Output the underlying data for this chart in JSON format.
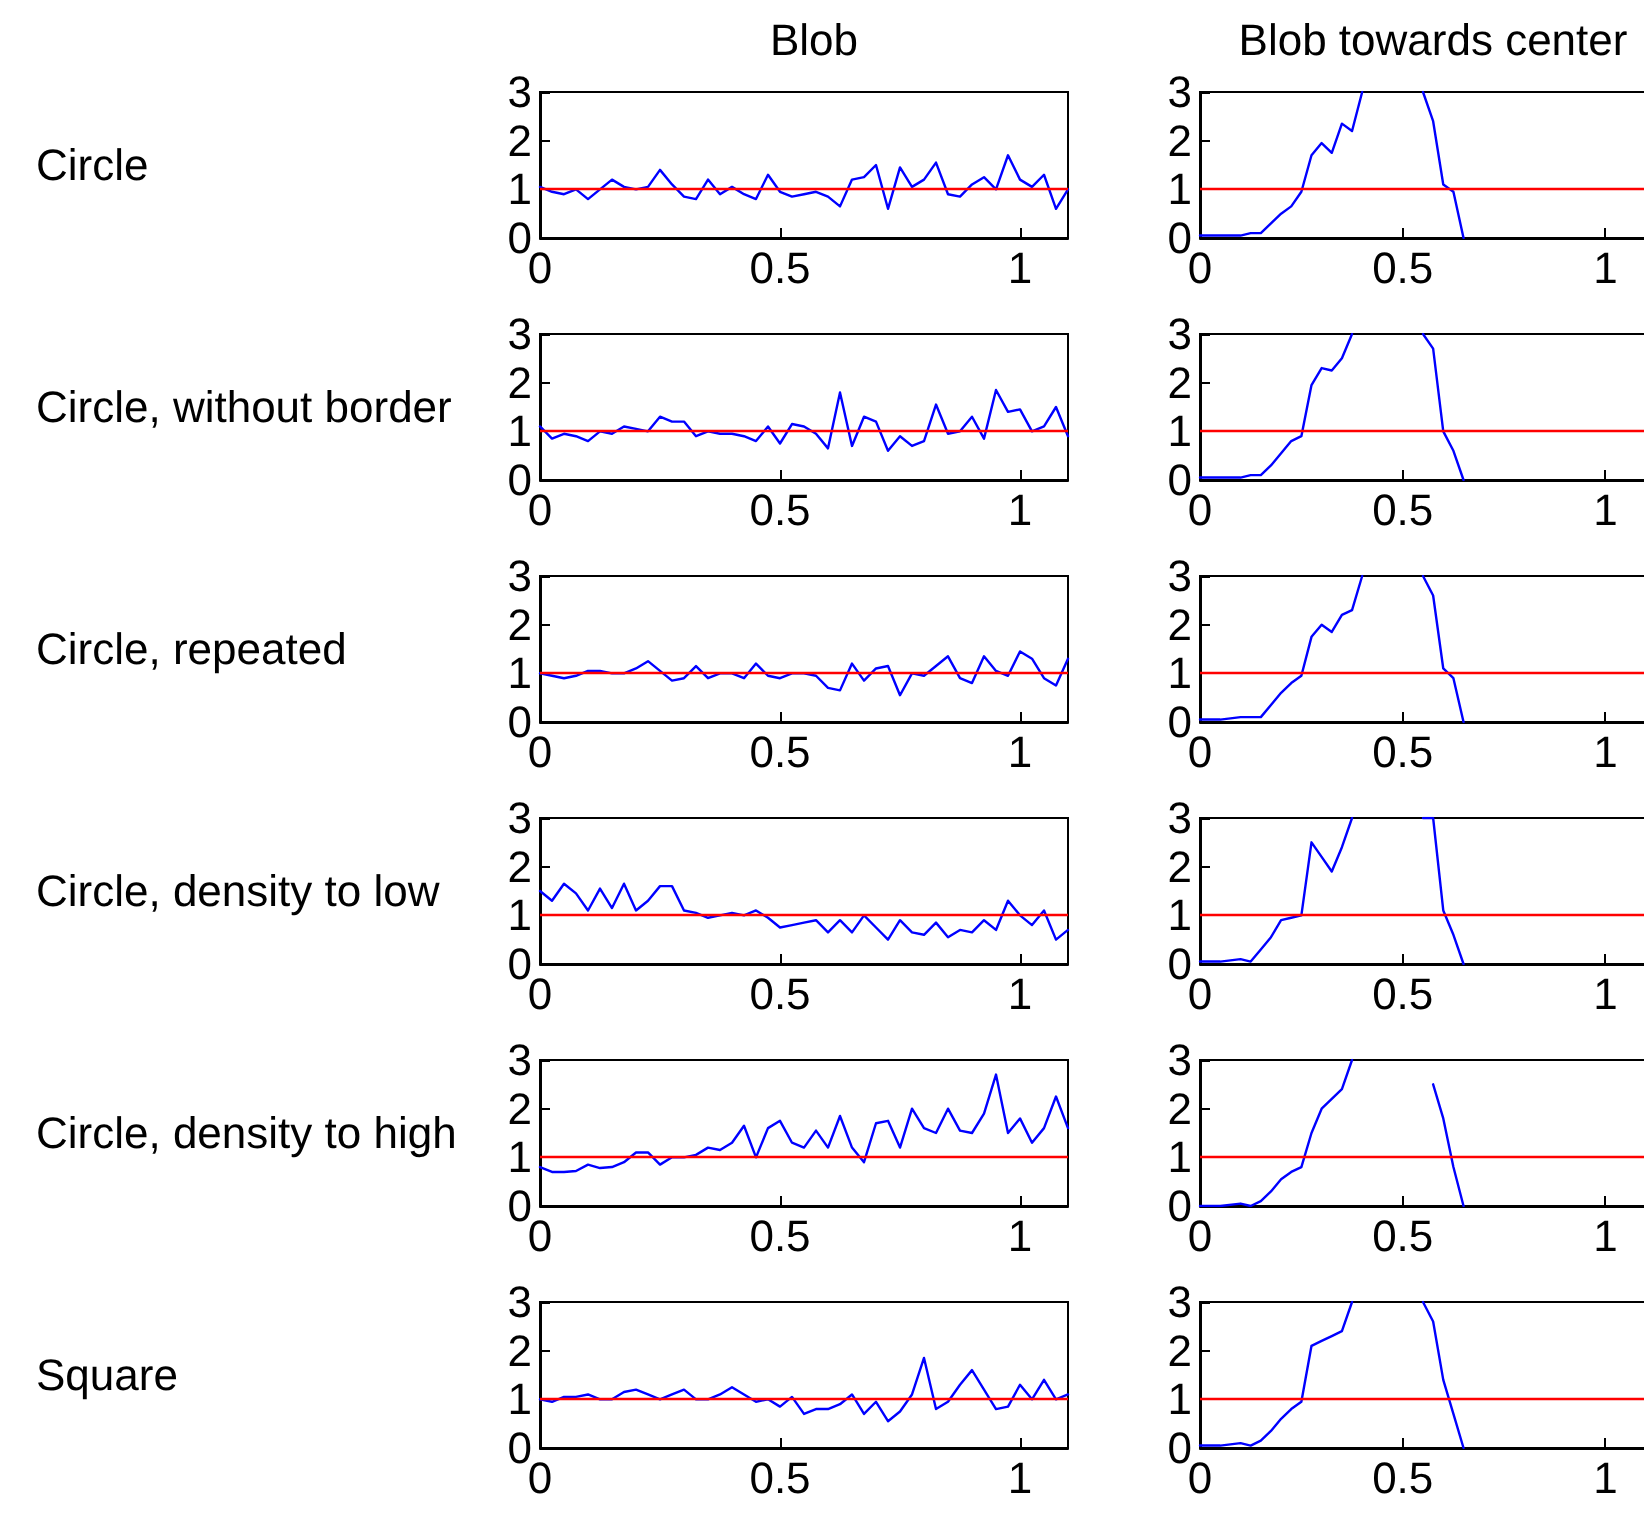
{
  "chart_data": [
    {
      "type": "line",
      "title": "Blob",
      "ylabel": "Circle",
      "x": [
        0,
        0.025,
        0.05,
        0.075,
        0.1,
        0.125,
        0.15,
        0.175,
        0.2,
        0.225,
        0.25,
        0.275,
        0.3,
        0.325,
        0.35,
        0.375,
        0.4,
        0.425,
        0.45,
        0.475,
        0.5,
        0.525,
        0.55,
        0.575,
        0.6,
        0.625,
        0.65,
        0.675,
        0.7,
        0.725,
        0.75,
        0.775,
        0.8,
        0.825,
        0.85,
        0.875,
        0.9,
        0.925,
        0.95,
        0.975,
        1,
        1.025,
        1.05,
        1.075,
        1.1
      ],
      "series": [
        {
          "color": "#0000ff",
          "values": [
            1.05,
            0.95,
            0.9,
            1.0,
            0.8,
            1.0,
            1.2,
            1.05,
            1.0,
            1.05,
            1.4,
            1.1,
            0.85,
            0.8,
            1.2,
            0.9,
            1.05,
            0.9,
            0.8,
            1.3,
            0.95,
            0.85,
            0.9,
            0.95,
            0.85,
            0.65,
            1.2,
            1.25,
            1.5,
            0.6,
            1.45,
            1.05,
            1.2,
            1.55,
            0.9,
            0.85,
            1.1,
            1.25,
            1.0,
            1.7,
            1.2,
            1.05,
            1.3,
            0.6,
            1.0
          ]
        }
      ],
      "xlim": [
        0,
        1.1
      ],
      "ylim": [
        0,
        3
      ],
      "xticks": [
        0,
        0.5,
        1
      ],
      "yticks": [
        0,
        1,
        2,
        3
      ],
      "grid": false,
      "marker": "none",
      "line_style": "solid",
      "ref_lines": [
        {
          "axis": "y",
          "value": 1,
          "color": "#ff0000"
        }
      ]
    },
    {
      "type": "line",
      "title": "Blob towards center",
      "x": [
        0,
        0.05,
        0.1,
        0.125,
        0.15,
        0.175,
        0.2,
        0.225,
        0.25,
        0.275,
        0.3,
        0.325,
        0.35,
        0.375,
        0.4,
        0.425,
        0.45,
        0.475,
        0.5,
        0.525,
        0.55,
        0.575,
        0.6,
        0.625,
        0.65
      ],
      "series": [
        {
          "color": "#0000ff",
          "values": [
            0.05,
            0.05,
            0.05,
            0.1,
            0.1,
            0.3,
            0.5,
            0.65,
            0.95,
            1.7,
            1.95,
            1.75,
            2.35,
            2.2,
            3,
            null,
            null,
            null,
            null,
            null,
            3,
            2.4,
            1.1,
            0.95,
            0
          ]
        }
      ],
      "xlim": [
        0,
        1.1
      ],
      "ylim": [
        0,
        3
      ],
      "xticks": [
        0,
        0.5,
        1
      ],
      "yticks": [
        0,
        1,
        2,
        3
      ],
      "grid": false,
      "marker": "none",
      "line_style": "solid",
      "ref_lines": [
        {
          "axis": "y",
          "value": 1,
          "color": "#ff0000"
        }
      ]
    },
    {
      "type": "line",
      "ylabel": "Circle, without border",
      "x": [
        0,
        0.025,
        0.05,
        0.075,
        0.1,
        0.125,
        0.15,
        0.175,
        0.2,
        0.225,
        0.25,
        0.275,
        0.3,
        0.325,
        0.35,
        0.375,
        0.4,
        0.425,
        0.45,
        0.475,
        0.5,
        0.525,
        0.55,
        0.575,
        0.6,
        0.625,
        0.65,
        0.675,
        0.7,
        0.725,
        0.75,
        0.775,
        0.8,
        0.825,
        0.85,
        0.875,
        0.9,
        0.925,
        0.95,
        0.975,
        1,
        1.025,
        1.05,
        1.075,
        1.1
      ],
      "series": [
        {
          "color": "#0000ff",
          "values": [
            1.1,
            0.85,
            0.95,
            0.9,
            0.8,
            1.0,
            0.95,
            1.1,
            1.05,
            1.0,
            1.3,
            1.2,
            1.2,
            0.9,
            1.0,
            0.95,
            0.95,
            0.9,
            0.8,
            1.1,
            0.75,
            1.15,
            1.1,
            0.95,
            0.65,
            1.8,
            0.7,
            1.3,
            1.2,
            0.6,
            0.9,
            0.7,
            0.8,
            1.55,
            0.95,
            1.0,
            1.3,
            0.85,
            1.85,
            1.4,
            1.45,
            1.0,
            1.1,
            1.5,
            0.9
          ]
        }
      ],
      "xlim": [
        0,
        1.1
      ],
      "ylim": [
        0,
        3
      ],
      "xticks": [
        0,
        0.5,
        1
      ],
      "yticks": [
        0,
        1,
        2,
        3
      ],
      "grid": false,
      "marker": "none",
      "line_style": "solid",
      "ref_lines": [
        {
          "axis": "y",
          "value": 1,
          "color": "#ff0000"
        }
      ]
    },
    {
      "type": "line",
      "x": [
        0,
        0.05,
        0.1,
        0.125,
        0.15,
        0.175,
        0.2,
        0.225,
        0.25,
        0.275,
        0.3,
        0.325,
        0.35,
        0.375,
        0.4,
        0.425,
        0.45,
        0.475,
        0.5,
        0.525,
        0.55,
        0.575,
        0.6,
        0.625,
        0.65
      ],
      "series": [
        {
          "color": "#0000ff",
          "values": [
            0.05,
            0.05,
            0.05,
            0.1,
            0.1,
            0.3,
            0.55,
            0.8,
            0.9,
            1.95,
            2.3,
            2.25,
            2.5,
            3,
            null,
            null,
            null,
            null,
            null,
            null,
            3,
            2.7,
            1.0,
            0.6,
            0
          ]
        }
      ],
      "xlim": [
        0,
        1.1
      ],
      "ylim": [
        0,
        3
      ],
      "xticks": [
        0,
        0.5,
        1
      ],
      "yticks": [
        0,
        1,
        2,
        3
      ],
      "grid": false,
      "marker": "none",
      "line_style": "solid",
      "ref_lines": [
        {
          "axis": "y",
          "value": 1,
          "color": "#ff0000"
        }
      ]
    },
    {
      "type": "line",
      "ylabel": "Circle, repeated",
      "x": [
        0,
        0.025,
        0.05,
        0.075,
        0.1,
        0.125,
        0.15,
        0.175,
        0.2,
        0.225,
        0.25,
        0.275,
        0.3,
        0.325,
        0.35,
        0.375,
        0.4,
        0.425,
        0.45,
        0.475,
        0.5,
        0.525,
        0.55,
        0.575,
        0.6,
        0.625,
        0.65,
        0.675,
        0.7,
        0.725,
        0.75,
        0.775,
        0.8,
        0.825,
        0.85,
        0.875,
        0.9,
        0.925,
        0.95,
        0.975,
        1,
        1.025,
        1.05,
        1.075,
        1.1
      ],
      "series": [
        {
          "color": "#0000ff",
          "values": [
            1.0,
            0.95,
            0.9,
            0.95,
            1.05,
            1.05,
            1.0,
            1.0,
            1.1,
            1.25,
            1.05,
            0.85,
            0.9,
            1.15,
            0.9,
            1.0,
            1.0,
            0.9,
            1.2,
            0.95,
            0.9,
            1.0,
            1.0,
            0.95,
            0.7,
            0.65,
            1.2,
            0.85,
            1.1,
            1.15,
            0.55,
            1.0,
            0.95,
            1.15,
            1.35,
            0.9,
            0.8,
            1.35,
            1.05,
            0.95,
            1.45,
            1.3,
            0.9,
            0.75,
            1.3
          ]
        }
      ],
      "xlim": [
        0,
        1.1
      ],
      "ylim": [
        0,
        3
      ],
      "xticks": [
        0,
        0.5,
        1
      ],
      "yticks": [
        0,
        1,
        2,
        3
      ],
      "grid": false,
      "marker": "none",
      "line_style": "solid",
      "ref_lines": [
        {
          "axis": "y",
          "value": 1,
          "color": "#ff0000"
        }
      ]
    },
    {
      "type": "line",
      "x": [
        0,
        0.05,
        0.1,
        0.125,
        0.15,
        0.175,
        0.2,
        0.225,
        0.25,
        0.275,
        0.3,
        0.325,
        0.35,
        0.375,
        0.4,
        0.425,
        0.45,
        0.475,
        0.5,
        0.525,
        0.55,
        0.575,
        0.6,
        0.625,
        0.65
      ],
      "series": [
        {
          "color": "#0000ff",
          "values": [
            0.05,
            0.05,
            0.1,
            0.1,
            0.1,
            0.35,
            0.6,
            0.8,
            0.95,
            1.75,
            2.0,
            1.85,
            2.2,
            2.3,
            3,
            null,
            null,
            null,
            null,
            null,
            3,
            2.6,
            1.1,
            0.9,
            0
          ]
        }
      ],
      "xlim": [
        0,
        1.1
      ],
      "ylim": [
        0,
        3
      ],
      "xticks": [
        0,
        0.5,
        1
      ],
      "yticks": [
        0,
        1,
        2,
        3
      ],
      "grid": false,
      "marker": "none",
      "line_style": "solid",
      "ref_lines": [
        {
          "axis": "y",
          "value": 1,
          "color": "#ff0000"
        }
      ]
    },
    {
      "type": "line",
      "ylabel": "Circle, density to low",
      "x": [
        0,
        0.025,
        0.05,
        0.075,
        0.1,
        0.125,
        0.15,
        0.175,
        0.2,
        0.225,
        0.25,
        0.275,
        0.3,
        0.325,
        0.35,
        0.375,
        0.4,
        0.425,
        0.45,
        0.475,
        0.5,
        0.525,
        0.55,
        0.575,
        0.6,
        0.625,
        0.65,
        0.675,
        0.7,
        0.725,
        0.75,
        0.775,
        0.8,
        0.825,
        0.85,
        0.875,
        0.9,
        0.925,
        0.95,
        0.975,
        1,
        1.025,
        1.05,
        1.075,
        1.1
      ],
      "series": [
        {
          "color": "#0000ff",
          "values": [
            1.5,
            1.3,
            1.65,
            1.45,
            1.1,
            1.55,
            1.15,
            1.65,
            1.1,
            1.3,
            1.6,
            1.6,
            1.1,
            1.05,
            0.95,
            1.0,
            1.05,
            1.0,
            1.1,
            0.95,
            0.75,
            0.8,
            0.85,
            0.9,
            0.65,
            0.9,
            0.65,
            1.0,
            0.75,
            0.5,
            0.9,
            0.65,
            0.6,
            0.85,
            0.55,
            0.7,
            0.65,
            0.9,
            0.7,
            1.3,
            1.0,
            0.8,
            1.1,
            0.5,
            0.7
          ]
        }
      ],
      "xlim": [
        0,
        1.1
      ],
      "ylim": [
        0,
        3
      ],
      "xticks": [
        0,
        0.5,
        1
      ],
      "yticks": [
        0,
        1,
        2,
        3
      ],
      "grid": false,
      "marker": "none",
      "line_style": "solid",
      "ref_lines": [
        {
          "axis": "y",
          "value": 1,
          "color": "#ff0000"
        }
      ]
    },
    {
      "type": "line",
      "x": [
        0,
        0.05,
        0.1,
        0.125,
        0.15,
        0.175,
        0.2,
        0.225,
        0.25,
        0.275,
        0.3,
        0.325,
        0.35,
        0.375,
        0.4,
        0.425,
        0.45,
        0.475,
        0.5,
        0.525,
        0.55,
        0.575,
        0.6,
        0.625,
        0.65
      ],
      "series": [
        {
          "color": "#0000ff",
          "values": [
            0.05,
            0.05,
            0.1,
            0.05,
            0.3,
            0.55,
            0.9,
            0.95,
            1.0,
            2.5,
            2.2,
            1.9,
            2.4,
            3,
            null,
            null,
            null,
            null,
            null,
            null,
            3,
            3,
            1.1,
            0.6,
            0
          ]
        }
      ],
      "xlim": [
        0,
        1.1
      ],
      "ylim": [
        0,
        3
      ],
      "xticks": [
        0,
        0.5,
        1
      ],
      "yticks": [
        0,
        1,
        2,
        3
      ],
      "grid": false,
      "marker": "none",
      "line_style": "solid",
      "ref_lines": [
        {
          "axis": "y",
          "value": 1,
          "color": "#ff0000"
        }
      ]
    },
    {
      "type": "line",
      "ylabel": "Circle, density to high",
      "x": [
        0,
        0.025,
        0.05,
        0.075,
        0.1,
        0.125,
        0.15,
        0.175,
        0.2,
        0.225,
        0.25,
        0.275,
        0.3,
        0.325,
        0.35,
        0.375,
        0.4,
        0.425,
        0.45,
        0.475,
        0.5,
        0.525,
        0.55,
        0.575,
        0.6,
        0.625,
        0.65,
        0.675,
        0.7,
        0.725,
        0.75,
        0.775,
        0.8,
        0.825,
        0.85,
        0.875,
        0.9,
        0.925,
        0.95,
        0.975,
        1,
        1.025,
        1.05,
        1.075,
        1.1
      ],
      "series": [
        {
          "color": "#0000ff",
          "values": [
            0.8,
            0.7,
            0.7,
            0.72,
            0.85,
            0.78,
            0.8,
            0.9,
            1.1,
            1.1,
            0.85,
            1.0,
            1.0,
            1.05,
            1.2,
            1.15,
            1.3,
            1.65,
            1.0,
            1.6,
            1.75,
            1.3,
            1.2,
            1.55,
            1.2,
            1.85,
            1.2,
            0.9,
            1.7,
            1.75,
            1.2,
            2.0,
            1.6,
            1.5,
            2.0,
            1.55,
            1.5,
            1.9,
            2.7,
            1.5,
            1.8,
            1.3,
            1.6,
            2.25,
            1.6
          ]
        }
      ],
      "xlim": [
        0,
        1.1
      ],
      "ylim": [
        0,
        3
      ],
      "xticks": [
        0,
        0.5,
        1
      ],
      "yticks": [
        0,
        1,
        2,
        3
      ],
      "grid": false,
      "marker": "none",
      "line_style": "solid",
      "ref_lines": [
        {
          "axis": "y",
          "value": 1,
          "color": "#ff0000"
        }
      ]
    },
    {
      "type": "line",
      "x": [
        0,
        0.05,
        0.1,
        0.125,
        0.15,
        0.175,
        0.2,
        0.225,
        0.25,
        0.275,
        0.3,
        0.325,
        0.35,
        0.375,
        0.4,
        0.425,
        0.45,
        0.475,
        0.5,
        0.525,
        0.55,
        0.575,
        0.6,
        0.625,
        0.65
      ],
      "series": [
        {
          "color": "#0000ff",
          "values": [
            0,
            0,
            0.05,
            0,
            0.1,
            0.3,
            0.55,
            0.7,
            0.8,
            1.5,
            2.0,
            2.2,
            2.4,
            3,
            null,
            null,
            null,
            null,
            null,
            null,
            null,
            2.5,
            1.8,
            0.8,
            0
          ]
        }
      ],
      "xlim": [
        0,
        1.1
      ],
      "ylim": [
        0,
        3
      ],
      "xticks": [
        0,
        0.5,
        1
      ],
      "yticks": [
        0,
        1,
        2,
        3
      ],
      "grid": false,
      "marker": "none",
      "line_style": "solid",
      "ref_lines": [
        {
          "axis": "y",
          "value": 1,
          "color": "#ff0000"
        }
      ]
    },
    {
      "type": "line",
      "ylabel": "Square",
      "x": [
        0,
        0.025,
        0.05,
        0.075,
        0.1,
        0.125,
        0.15,
        0.175,
        0.2,
        0.225,
        0.25,
        0.275,
        0.3,
        0.325,
        0.35,
        0.375,
        0.4,
        0.425,
        0.45,
        0.475,
        0.5,
        0.525,
        0.55,
        0.575,
        0.6,
        0.625,
        0.65,
        0.675,
        0.7,
        0.725,
        0.75,
        0.775,
        0.8,
        0.825,
        0.85,
        0.875,
        0.9,
        0.925,
        0.95,
        0.975,
        1,
        1.025,
        1.05,
        1.075,
        1.1
      ],
      "series": [
        {
          "color": "#0000ff",
          "values": [
            1.0,
            0.95,
            1.05,
            1.05,
            1.1,
            1.0,
            1.0,
            1.15,
            1.2,
            1.1,
            1.0,
            1.1,
            1.2,
            1.0,
            1.0,
            1.1,
            1.25,
            1.1,
            0.95,
            1.0,
            0.85,
            1.05,
            0.7,
            0.8,
            0.8,
            0.9,
            1.1,
            0.7,
            0.95,
            0.55,
            0.75,
            1.1,
            1.85,
            0.8,
            0.95,
            1.3,
            1.6,
            1.2,
            0.8,
            0.85,
            1.3,
            1.0,
            1.4,
            1.0,
            1.1
          ]
        }
      ],
      "xlim": [
        0,
        1.1
      ],
      "ylim": [
        0,
        3
      ],
      "xticks": [
        0,
        0.5,
        1
      ],
      "yticks": [
        0,
        1,
        2,
        3
      ],
      "grid": false,
      "marker": "none",
      "line_style": "solid",
      "ref_lines": [
        {
          "axis": "y",
          "value": 1,
          "color": "#ff0000"
        }
      ]
    },
    {
      "type": "line",
      "x": [
        0,
        0.05,
        0.1,
        0.125,
        0.15,
        0.175,
        0.2,
        0.225,
        0.25,
        0.275,
        0.3,
        0.325,
        0.35,
        0.375,
        0.4,
        0.425,
        0.45,
        0.475,
        0.5,
        0.525,
        0.55,
        0.575,
        0.6,
        0.625,
        0.65
      ],
      "series": [
        {
          "color": "#0000ff",
          "values": [
            0.05,
            0.05,
            0.1,
            0.05,
            0.15,
            0.35,
            0.6,
            0.8,
            0.95,
            2.1,
            2.2,
            2.3,
            2.4,
            3,
            null,
            null,
            null,
            null,
            null,
            null,
            3,
            2.6,
            1.4,
            0.7,
            0
          ]
        }
      ],
      "xlim": [
        0,
        1.1
      ],
      "ylim": [
        0,
        3
      ],
      "xticks": [
        0,
        0.5,
        1
      ],
      "yticks": [
        0,
        1,
        2,
        3
      ],
      "grid": false,
      "marker": "none",
      "line_style": "solid",
      "ref_lines": [
        {
          "axis": "y",
          "value": 1,
          "color": "#ff0000"
        }
      ]
    }
  ]
}
